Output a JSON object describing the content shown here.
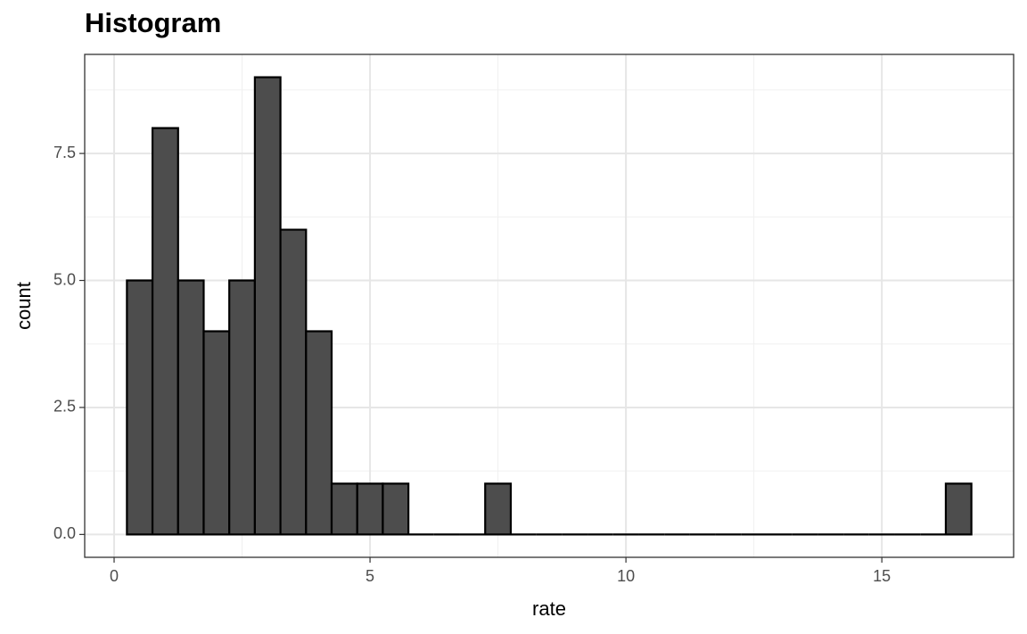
{
  "chart_data": {
    "type": "histogram",
    "title": "Histogram",
    "x_label": "rate",
    "y_label": "count",
    "bins": [
      0.25,
      0.75,
      1.25,
      1.75,
      2.25,
      2.75,
      3.25,
      3.75,
      4.25,
      4.75,
      5.25,
      5.75,
      6.25,
      6.75,
      7.25,
      7.75,
      8.25,
      8.75,
      9.25,
      9.75,
      10.25,
      10.75,
      11.25,
      11.75,
      12.25,
      12.75,
      13.25,
      13.75,
      14.25,
      14.75,
      15.25,
      15.75,
      16.25,
      16.75
    ],
    "values": [
      5,
      8,
      5,
      4,
      5,
      9,
      6,
      4,
      1,
      1,
      1,
      0,
      0,
      0,
      1,
      0,
      0,
      0,
      0,
      0,
      0,
      0,
      0,
      0,
      0,
      0,
      0,
      0,
      0,
      0,
      0,
      0,
      1
    ],
    "color": "#4d4d4d",
    "edge_color": "#000000",
    "xlim": [
      -0.575,
      17.575
    ],
    "ylim": [
      -0.45,
      9.45
    ],
    "xticks": [
      0,
      5,
      10,
      15
    ],
    "yticks": [
      {
        "value": 0,
        "label": "0.0"
      },
      {
        "value": 2.5,
        "label": "2.5"
      },
      {
        "value": 5,
        "label": "5.0"
      },
      {
        "value": 7.5,
        "label": "7.5"
      }
    ],
    "xminor": [
      2.5,
      7.5,
      12.5
    ],
    "yminor": [
      1.25,
      3.75,
      6.25,
      8.75
    ],
    "grid": true
  }
}
